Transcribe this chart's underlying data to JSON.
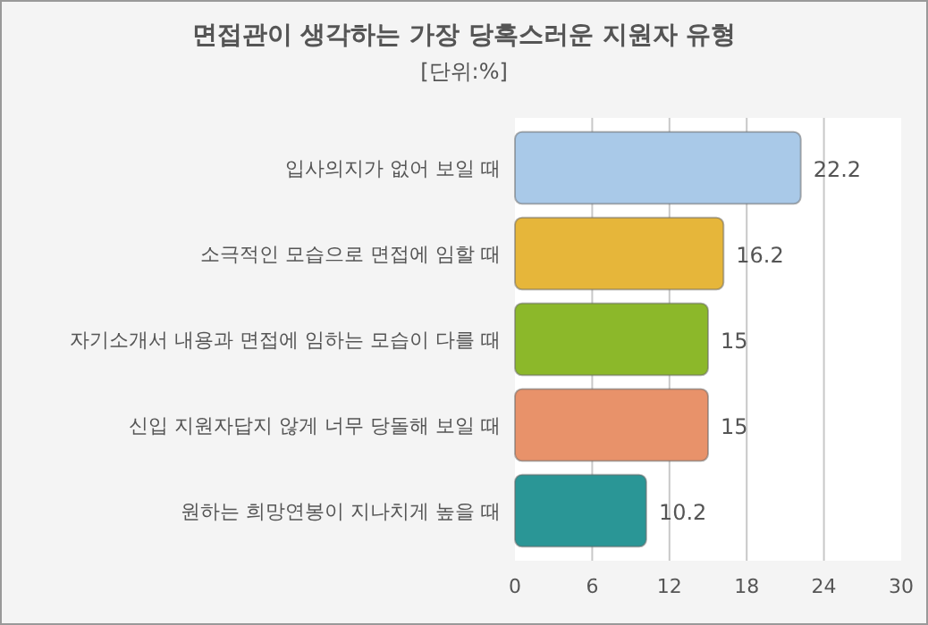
{
  "chart_data": {
    "type": "bar",
    "orientation": "horizontal",
    "title": "면접관이 생각하는 가장 당혹스러운 지원자 유형",
    "subtitle": "[단위:%]",
    "categories": [
      "입사의지가 없어 보일 때",
      "소극적인 모습으로 면접에 임할 때",
      "자기소개서 내용과 면접에 임하는 모습이 다를 때",
      "신입 지원자답지 않게 너무 당돌해 보일 때",
      "원하는 희망연봉이 지나치게 높을 때"
    ],
    "values": [
      22.2,
      16.2,
      15,
      15,
      10.2
    ],
    "colors": [
      "#a9c9e8",
      "#e6b63a",
      "#8cb82a",
      "#e8926a",
      "#2a9696"
    ],
    "xlim": [
      0,
      30
    ],
    "xticks": [
      0,
      6,
      12,
      18,
      24,
      30
    ],
    "grid": "x",
    "data_labels": true
  }
}
